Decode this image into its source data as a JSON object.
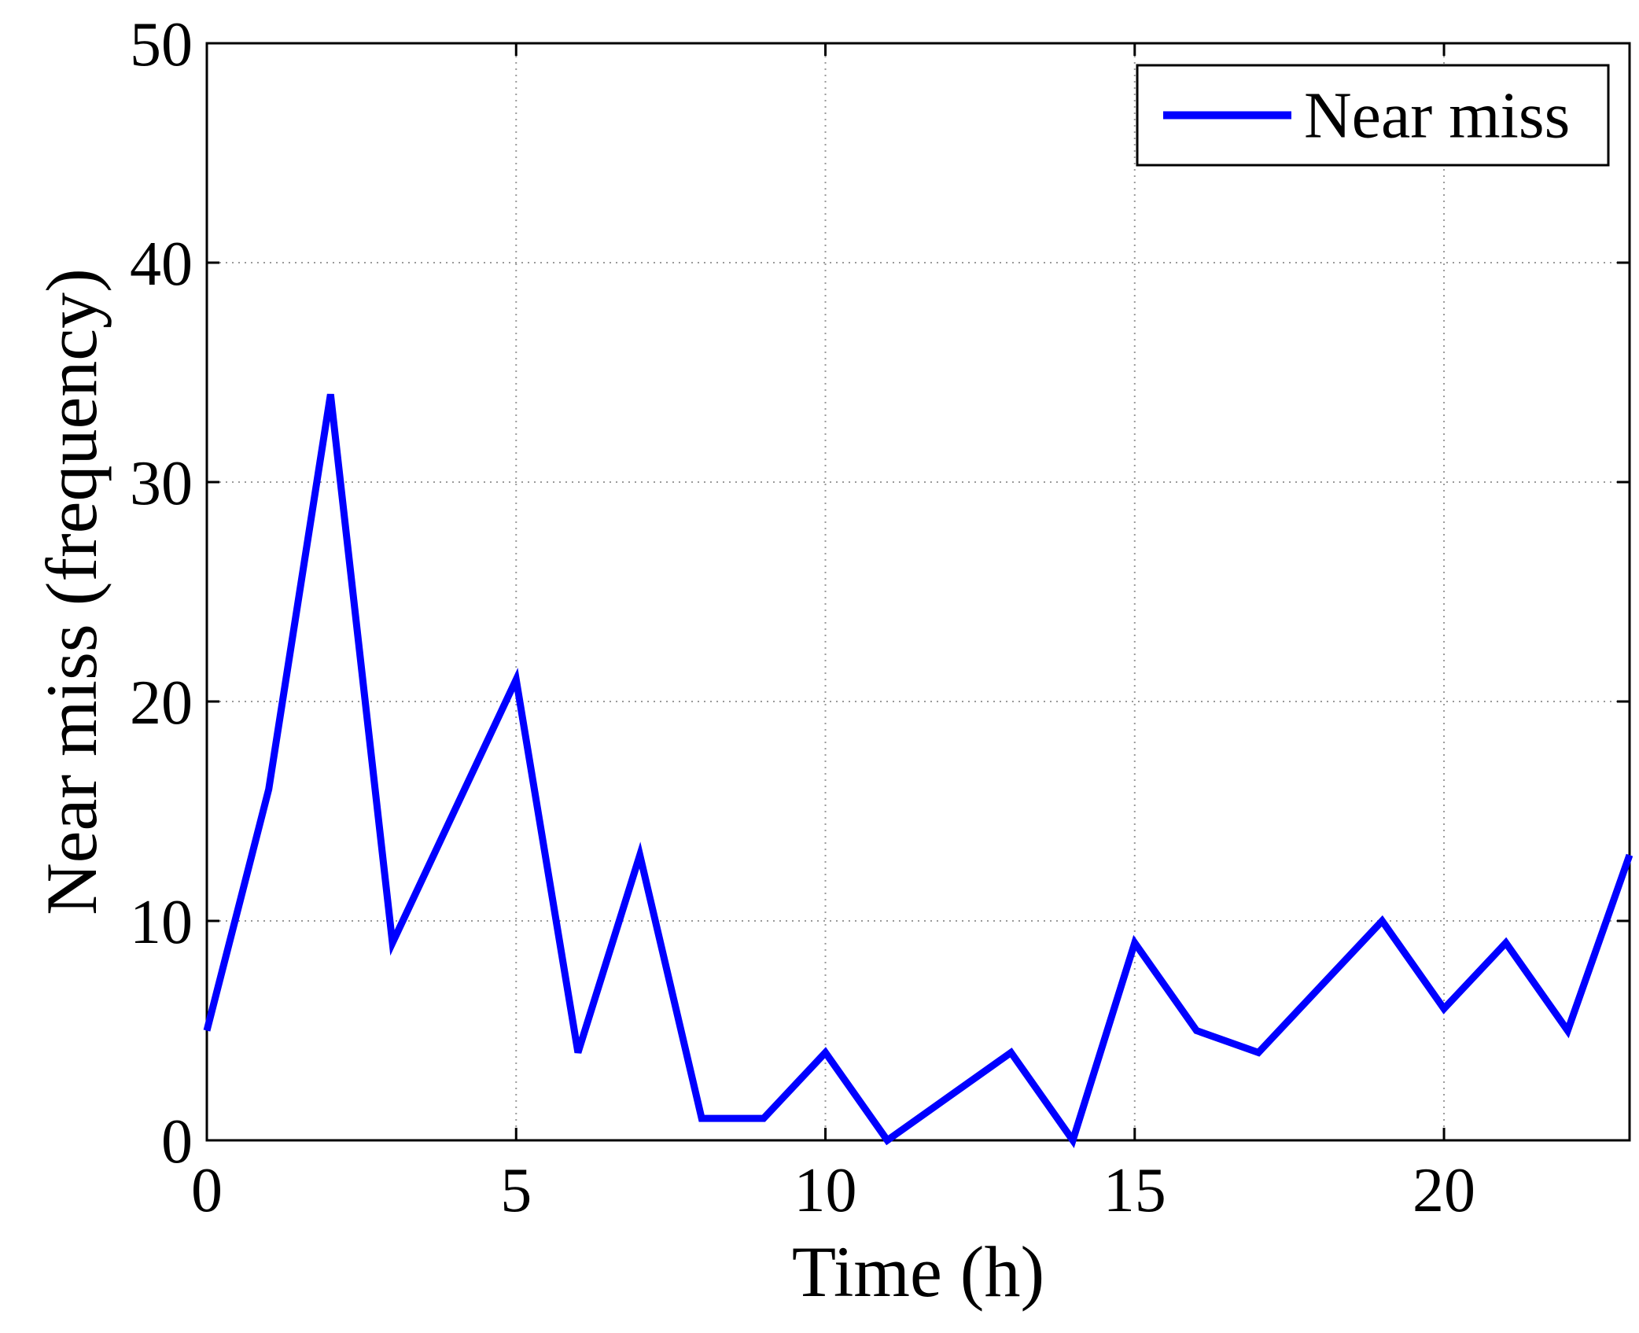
{
  "chart_data": {
    "type": "line",
    "xlabel": "Time (h)",
    "ylabel": "Near miss (frequency)",
    "xlim": [
      0,
      23
    ],
    "ylim": [
      0,
      50
    ],
    "xticks": [
      0,
      5,
      10,
      15,
      20
    ],
    "yticks": [
      0,
      10,
      20,
      30,
      40,
      50
    ],
    "grid": true,
    "legend_position": "top-right",
    "series": [
      {
        "name": "Near miss",
        "color": "#0000ff",
        "x": [
          0,
          1,
          2,
          3,
          4,
          5,
          6,
          7,
          8,
          9,
          10,
          11,
          12,
          13,
          14,
          15,
          16,
          17,
          18,
          19,
          20,
          21,
          22,
          23
        ],
        "y": [
          5,
          16,
          34,
          9,
          15,
          21,
          4,
          13,
          1,
          1,
          4,
          0,
          2,
          4,
          0,
          9,
          5,
          4,
          7,
          10,
          6,
          9,
          5,
          13
        ]
      }
    ]
  }
}
